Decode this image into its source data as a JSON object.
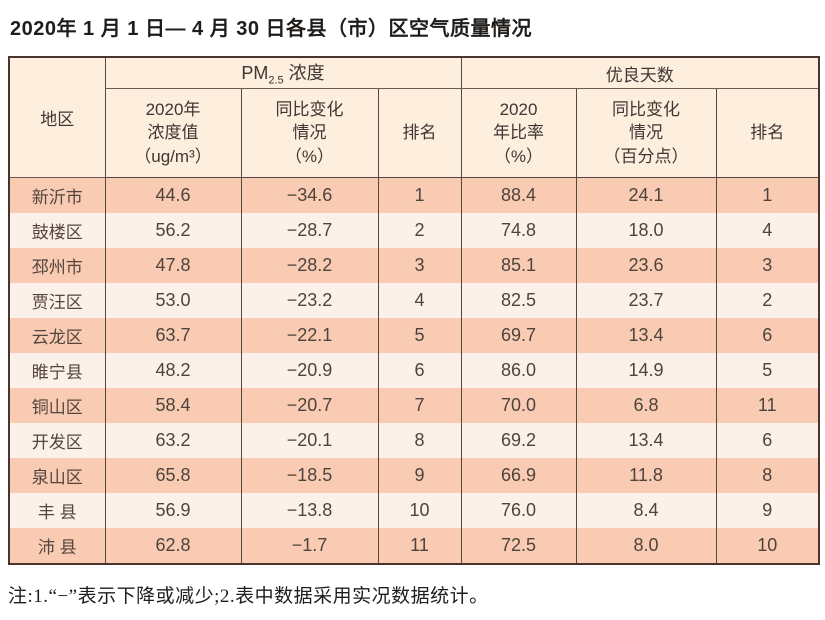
{
  "title": "2020年 1 月 1 日— 4 月 30 日各县（市）区空气质量情况",
  "table": {
    "header": {
      "region": "地区",
      "pm_group": {
        "prefix": "PM",
        "sub": "2.5",
        "suffix": " 浓度"
      },
      "good_group": "优良天数",
      "pm_value": "2020年\n浓度值\n（ug/m³）",
      "pm_change": "同比变化\n情况\n（%）",
      "pm_rank": "排名",
      "good_ratio": "2020\n年比率\n（%）",
      "good_change": "同比变化\n情况\n（百分点）",
      "good_rank": "排名"
    },
    "rows": [
      {
        "region": "新沂市",
        "pm_value": "44.6",
        "pm_change": "−34.6",
        "pm_rank": "1",
        "good_ratio": "88.4",
        "good_change": "24.1",
        "good_rank": "1"
      },
      {
        "region": "鼓楼区",
        "pm_value": "56.2",
        "pm_change": "−28.7",
        "pm_rank": "2",
        "good_ratio": "74.8",
        "good_change": "18.0",
        "good_rank": "4"
      },
      {
        "region": "邳州市",
        "pm_value": "47.8",
        "pm_change": "−28.2",
        "pm_rank": "3",
        "good_ratio": "85.1",
        "good_change": "23.6",
        "good_rank": "3"
      },
      {
        "region": "贾汪区",
        "pm_value": "53.0",
        "pm_change": "−23.2",
        "pm_rank": "4",
        "good_ratio": "82.5",
        "good_change": "23.7",
        "good_rank": "2"
      },
      {
        "region": "云龙区",
        "pm_value": "63.7",
        "pm_change": "−22.1",
        "pm_rank": "5",
        "good_ratio": "69.7",
        "good_change": "13.4",
        "good_rank": "6"
      },
      {
        "region": "睢宁县",
        "pm_value": "48.2",
        "pm_change": "−20.9",
        "pm_rank": "6",
        "good_ratio": "86.0",
        "good_change": "14.9",
        "good_rank": "5"
      },
      {
        "region": "铜山区",
        "pm_value": "58.4",
        "pm_change": "−20.7",
        "pm_rank": "7",
        "good_ratio": "70.0",
        "good_change": "6.8",
        "good_rank": "11"
      },
      {
        "region": "开发区",
        "pm_value": "63.2",
        "pm_change": "−20.1",
        "pm_rank": "8",
        "good_ratio": "69.2",
        "good_change": "13.4",
        "good_rank": "6"
      },
      {
        "region": "泉山区",
        "pm_value": "65.8",
        "pm_change": "−18.5",
        "pm_rank": "9",
        "good_ratio": "66.9",
        "good_change": "11.8",
        "good_rank": "8"
      },
      {
        "region": "丰 县",
        "pm_value": "56.9",
        "pm_change": "−13.8",
        "pm_rank": "10",
        "good_ratio": "76.0",
        "good_change": "8.4",
        "good_rank": "9"
      },
      {
        "region": "沛 县",
        "pm_value": "62.8",
        "pm_change": "−1.7",
        "pm_rank": "11",
        "good_ratio": "72.5",
        "good_change": "8.0",
        "good_rank": "10"
      }
    ]
  },
  "footnote": "注:1.“−”表示下降或减少;2.表中数据采用实况数据统计。",
  "colors": {
    "row_odd": "#f8cbb2",
    "row_even": "#fcf1ea",
    "header_bg": "#fdeedd",
    "outer_border": "#4a342d",
    "inner_border": "#554740"
  }
}
